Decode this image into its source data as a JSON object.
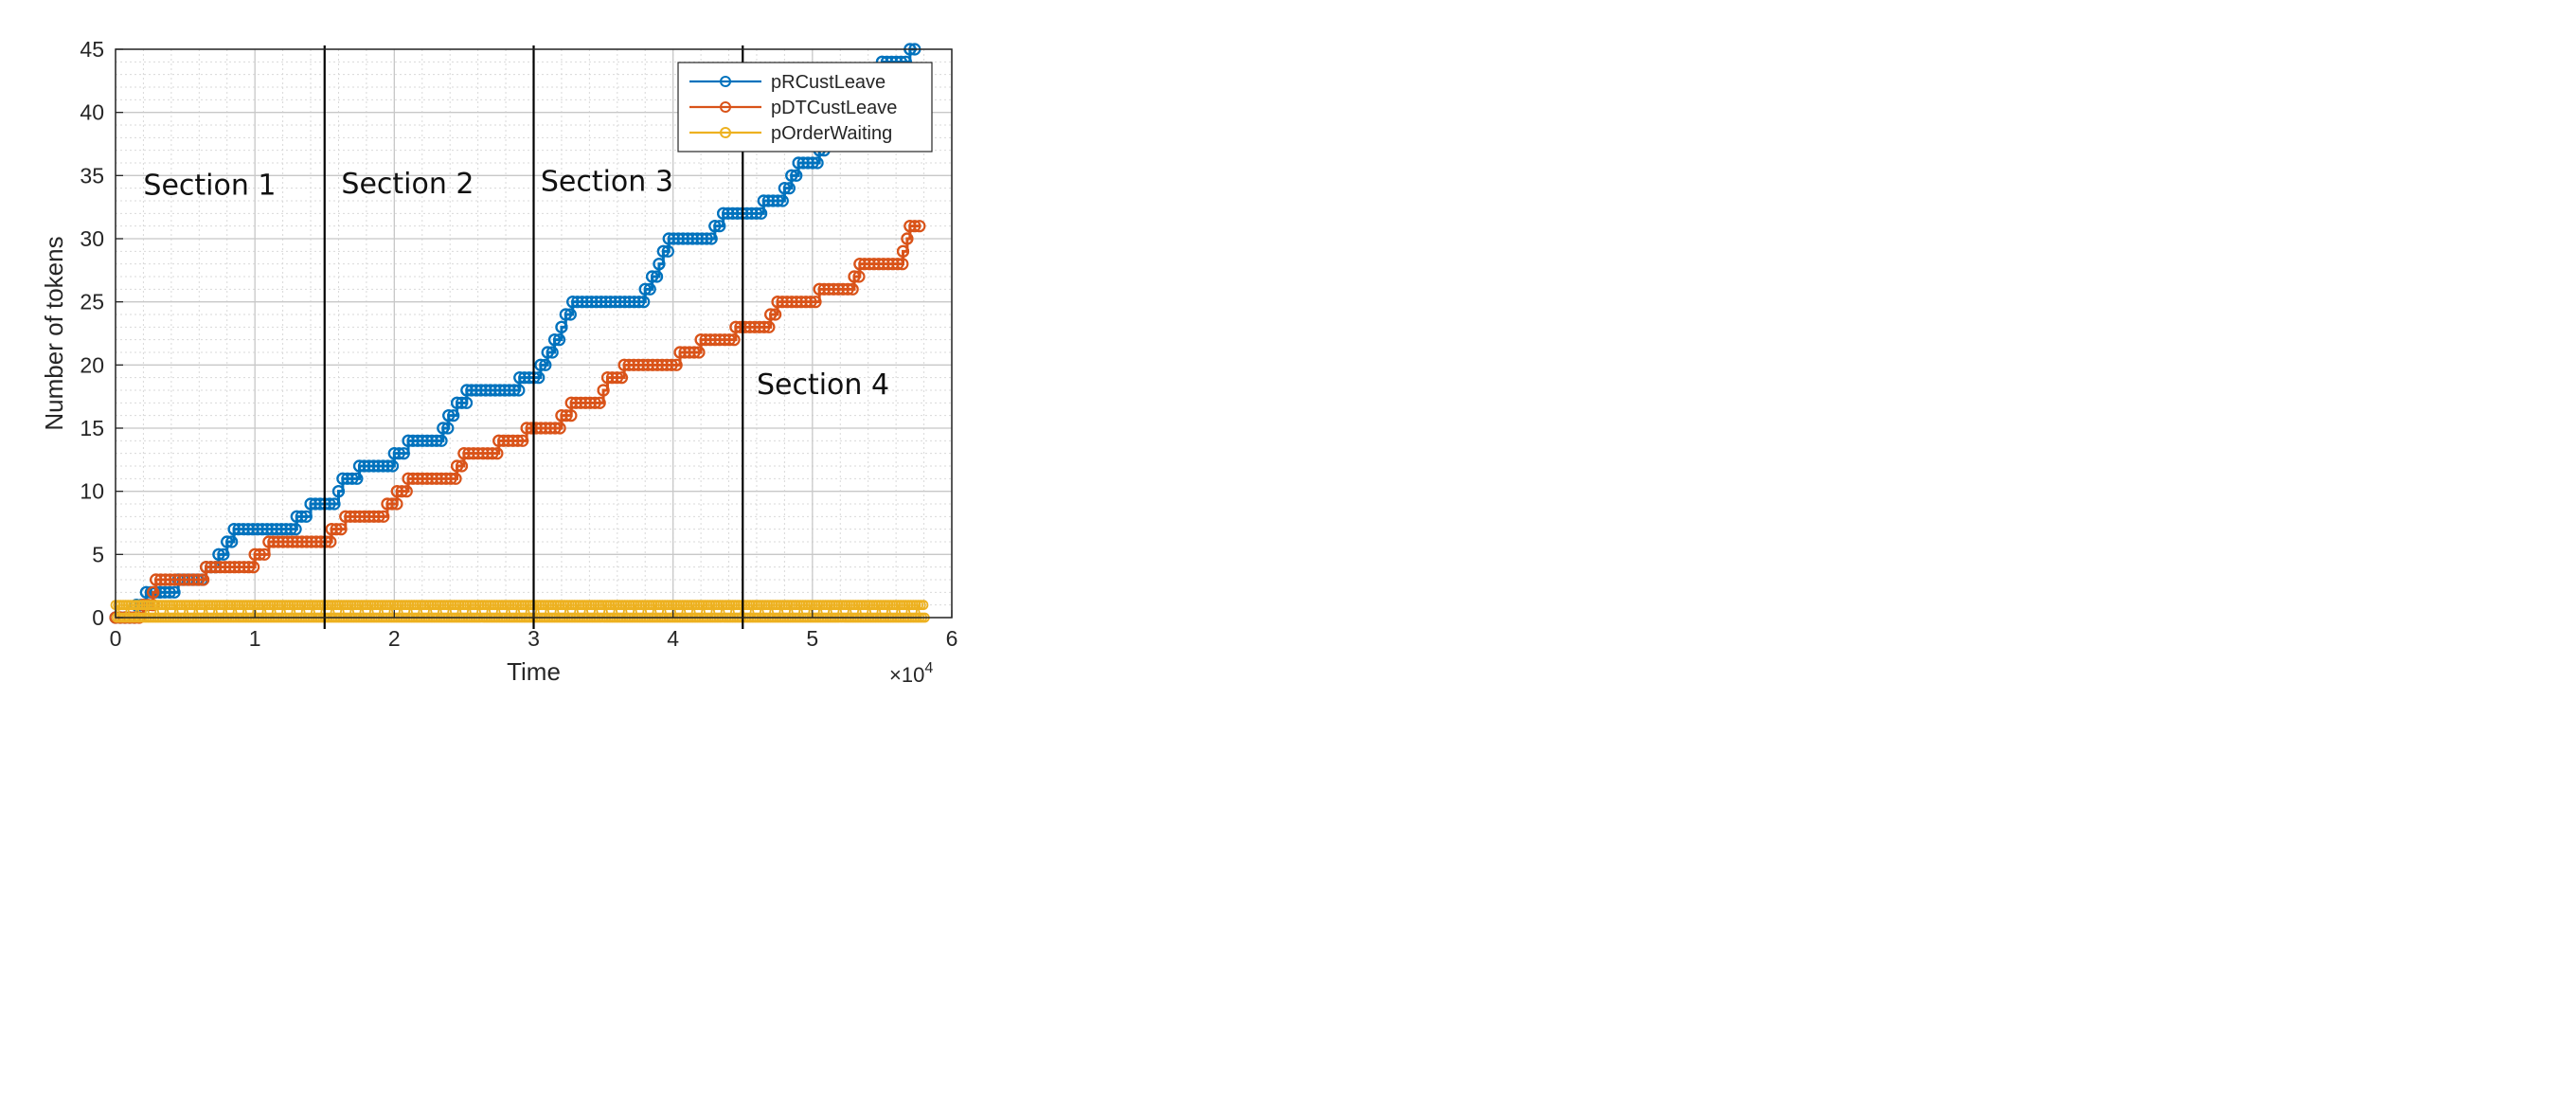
{
  "chart_data": {
    "type": "line",
    "title": "",
    "xlabel": "Time",
    "ylabel": "Number of tokens",
    "x_exponent_label": "×10",
    "x_exponent_power": "4",
    "xlim": [
      0,
      60000
    ],
    "ylim": [
      0,
      45
    ],
    "xticks": [
      0,
      10000,
      20000,
      30000,
      40000,
      50000,
      60000
    ],
    "xtick_labels": [
      "0",
      "1",
      "2",
      "3",
      "4",
      "5",
      "6"
    ],
    "yticks": [
      0,
      5,
      10,
      15,
      20,
      25,
      30,
      35,
      40,
      45
    ],
    "ytick_labels": [
      "0",
      "5",
      "10",
      "15",
      "20",
      "25",
      "30",
      "35",
      "40",
      "45"
    ],
    "grid": true,
    "minor_grid": true,
    "legend_position": "top-right",
    "series": [
      {
        "name": "pRCustLeave",
        "color": "#0072BD",
        "marker": "circle",
        "points": [
          [
            0,
            0
          ],
          [
            1500,
            0
          ],
          [
            1500,
            1
          ],
          [
            2200,
            1
          ],
          [
            2200,
            2
          ],
          [
            3200,
            2
          ],
          [
            3200,
            2
          ],
          [
            4500,
            2
          ],
          [
            4500,
            3
          ],
          [
            6500,
            3
          ],
          [
            6500,
            4
          ],
          [
            7400,
            4
          ],
          [
            7400,
            5
          ],
          [
            8000,
            5
          ],
          [
            8000,
            6
          ],
          [
            8500,
            6
          ],
          [
            8500,
            7
          ],
          [
            13000,
            7
          ],
          [
            13000,
            8
          ],
          [
            14000,
            8
          ],
          [
            14000,
            9
          ],
          [
            16000,
            9
          ],
          [
            16000,
            10
          ],
          [
            16300,
            10
          ],
          [
            16300,
            11
          ],
          [
            17500,
            11
          ],
          [
            17500,
            12
          ],
          [
            20000,
            12
          ],
          [
            20000,
            13
          ],
          [
            21000,
            13
          ],
          [
            21000,
            14
          ],
          [
            23500,
            14
          ],
          [
            23500,
            15
          ],
          [
            23900,
            15
          ],
          [
            23900,
            16
          ],
          [
            24500,
            16
          ],
          [
            24500,
            17
          ],
          [
            25200,
            17
          ],
          [
            25200,
            18
          ],
          [
            29000,
            18
          ],
          [
            29000,
            19
          ],
          [
            30500,
            19
          ],
          [
            30500,
            20
          ],
          [
            31000,
            20
          ],
          [
            31000,
            21
          ],
          [
            31500,
            21
          ],
          [
            31500,
            22
          ],
          [
            32000,
            22
          ],
          [
            32000,
            23
          ],
          [
            32300,
            23
          ],
          [
            32300,
            24
          ],
          [
            32800,
            24
          ],
          [
            32800,
            25
          ],
          [
            38000,
            25
          ],
          [
            38000,
            26
          ],
          [
            38500,
            26
          ],
          [
            38500,
            27
          ],
          [
            39000,
            27
          ],
          [
            39000,
            28
          ],
          [
            39300,
            28
          ],
          [
            39300,
            29
          ],
          [
            39700,
            29
          ],
          [
            39700,
            30
          ],
          [
            43000,
            30
          ],
          [
            43000,
            31
          ],
          [
            43600,
            31
          ],
          [
            43600,
            32
          ],
          [
            46500,
            32
          ],
          [
            46500,
            33
          ],
          [
            48000,
            33
          ],
          [
            48000,
            34
          ],
          [
            48500,
            34
          ],
          [
            48500,
            35
          ],
          [
            49000,
            35
          ],
          [
            49000,
            36
          ],
          [
            50500,
            36
          ],
          [
            50500,
            37
          ],
          [
            51000,
            37
          ],
          [
            51000,
            38
          ],
          [
            51500,
            38
          ],
          [
            51500,
            39
          ],
          [
            52000,
            39
          ],
          [
            52000,
            40
          ],
          [
            52500,
            40
          ],
          [
            52500,
            41
          ],
          [
            53000,
            41
          ],
          [
            53000,
            42
          ],
          [
            53500,
            42
          ],
          [
            53500,
            43
          ],
          [
            55000,
            43
          ],
          [
            55000,
            44
          ],
          [
            57000,
            44
          ],
          [
            57000,
            45
          ],
          [
            57500,
            45
          ]
        ]
      },
      {
        "name": "pDTCustLeave",
        "color": "#D95319",
        "marker": "circle",
        "points": [
          [
            0,
            0
          ],
          [
            2000,
            0
          ],
          [
            2000,
            1
          ],
          [
            2700,
            1
          ],
          [
            2700,
            2
          ],
          [
            2900,
            2
          ],
          [
            2900,
            3
          ],
          [
            6500,
            3
          ],
          [
            6500,
            4
          ],
          [
            10000,
            4
          ],
          [
            10000,
            5
          ],
          [
            11000,
            5
          ],
          [
            11000,
            6
          ],
          [
            15500,
            6
          ],
          [
            15500,
            7
          ],
          [
            16500,
            7
          ],
          [
            16500,
            8
          ],
          [
            19500,
            8
          ],
          [
            19500,
            9
          ],
          [
            20200,
            9
          ],
          [
            20200,
            10
          ],
          [
            21000,
            10
          ],
          [
            21000,
            11
          ],
          [
            24500,
            11
          ],
          [
            24500,
            12
          ],
          [
            25000,
            12
          ],
          [
            25000,
            13
          ],
          [
            27500,
            13
          ],
          [
            27500,
            14
          ],
          [
            29500,
            14
          ],
          [
            29500,
            15
          ],
          [
            32000,
            15
          ],
          [
            32000,
            16
          ],
          [
            32700,
            16
          ],
          [
            32700,
            17
          ],
          [
            35000,
            17
          ],
          [
            35000,
            18
          ],
          [
            35300,
            18
          ],
          [
            35300,
            19
          ],
          [
            36500,
            19
          ],
          [
            36500,
            20
          ],
          [
            40500,
            20
          ],
          [
            40500,
            21
          ],
          [
            42000,
            21
          ],
          [
            42000,
            22
          ],
          [
            44500,
            22
          ],
          [
            44500,
            23
          ],
          [
            47000,
            23
          ],
          [
            47000,
            24
          ],
          [
            47500,
            24
          ],
          [
            47500,
            25
          ],
          [
            50500,
            25
          ],
          [
            50500,
            26
          ],
          [
            53000,
            26
          ],
          [
            53000,
            27
          ],
          [
            53400,
            27
          ],
          [
            53400,
            28
          ],
          [
            56500,
            28
          ],
          [
            56500,
            29
          ],
          [
            56800,
            29
          ],
          [
            56800,
            30
          ],
          [
            57000,
            30
          ],
          [
            57000,
            31
          ],
          [
            57800,
            31
          ]
        ]
      },
      {
        "name": "pOrderWaiting",
        "color": "#EDB120",
        "marker": "circle",
        "points": "alternates between 0 and 1 throughout 0 to 58000"
      }
    ],
    "order_waiting_levels": [
      0,
      1
    ],
    "order_waiting_range": [
      0,
      58000
    ],
    "vertical_lines": [
      15000,
      30000,
      45000
    ],
    "annotations": [
      {
        "text": "Section 1",
        "x": 2000,
        "y": 33.5
      },
      {
        "text": "Section 2",
        "x": 16200,
        "y": 33.6
      },
      {
        "text": "Section 3",
        "x": 30500,
        "y": 33.8
      },
      {
        "text": "Section 4",
        "x": 46000,
        "y": 17.7
      }
    ]
  }
}
